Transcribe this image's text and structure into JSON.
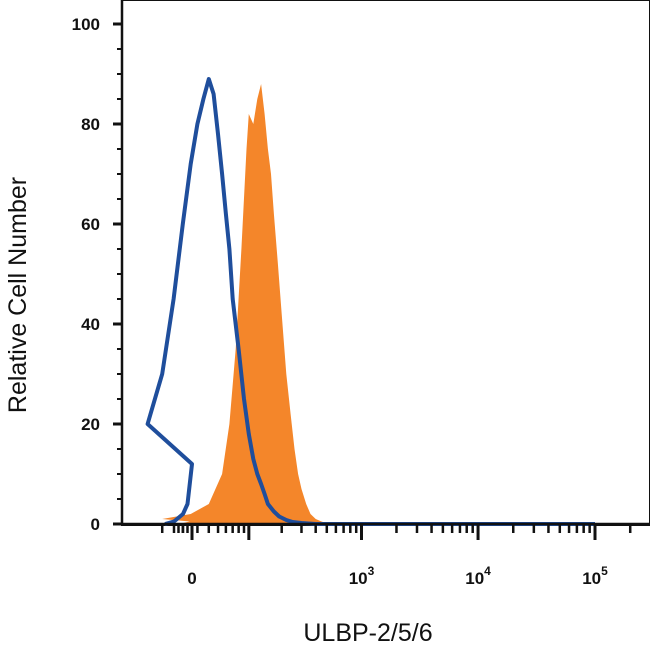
{
  "chart_data": {
    "type": "area",
    "xlabel": "ULBP-2/5/6",
    "ylabel": "Relative Cell Number",
    "x_scale": "biexponential",
    "ylim": [
      0,
      100
    ],
    "y_ticks": [
      0,
      20,
      40,
      60,
      80,
      100
    ],
    "x_ticks": [
      {
        "value": 0,
        "base": "0",
        "exp": ""
      },
      {
        "value": 1000,
        "base": "10",
        "exp": "3"
      },
      {
        "value": 10000,
        "base": "10",
        "exp": "4"
      },
      {
        "value": 100000,
        "base": "10",
        "exp": "5"
      }
    ],
    "grid": false,
    "legend": "none",
    "series": [
      {
        "style": "filled",
        "color": "#f4862a",
        "x": [
          -30,
          -5,
          10,
          25,
          40,
          55,
          65,
          75,
          85,
          95,
          100,
          110,
          120,
          130,
          140,
          150,
          160,
          170,
          185,
          200,
          220,
          240,
          260,
          280,
          300,
          330,
          360,
          400,
          450,
          520,
          600,
          700,
          1000,
          100000
        ],
        "y": [
          0,
          0.5,
          1,
          2,
          4,
          10,
          20,
          35,
          55,
          75,
          82,
          80,
          85,
          88,
          82,
          75,
          70,
          62,
          52,
          42,
          30,
          22,
          15,
          10,
          7,
          4,
          2,
          1,
          0.5,
          0,
          0,
          0,
          0,
          0
        ]
      },
      {
        "style": "outline",
        "color": "#1f4e9c",
        "x": [
          -60,
          -40,
          -20,
          -10,
          0,
          5,
          10,
          15,
          20,
          25,
          30,
          35,
          40,
          45,
          50,
          55,
          60,
          65,
          70,
          80,
          90,
          100,
          110,
          120,
          130,
          140,
          150,
          170,
          190,
          220,
          250,
          300,
          400,
          1000,
          100000
        ],
        "y": [
          0,
          0.5,
          2,
          4,
          12,
          20,
          30,
          45,
          60,
          72,
          80,
          85,
          89,
          86,
          78,
          70,
          62,
          55,
          45,
          35,
          25,
          18,
          13,
          10,
          8,
          6,
          4,
          2.5,
          1.5,
          0.8,
          0.4,
          0.2,
          0,
          0,
          0
        ]
      }
    ]
  }
}
